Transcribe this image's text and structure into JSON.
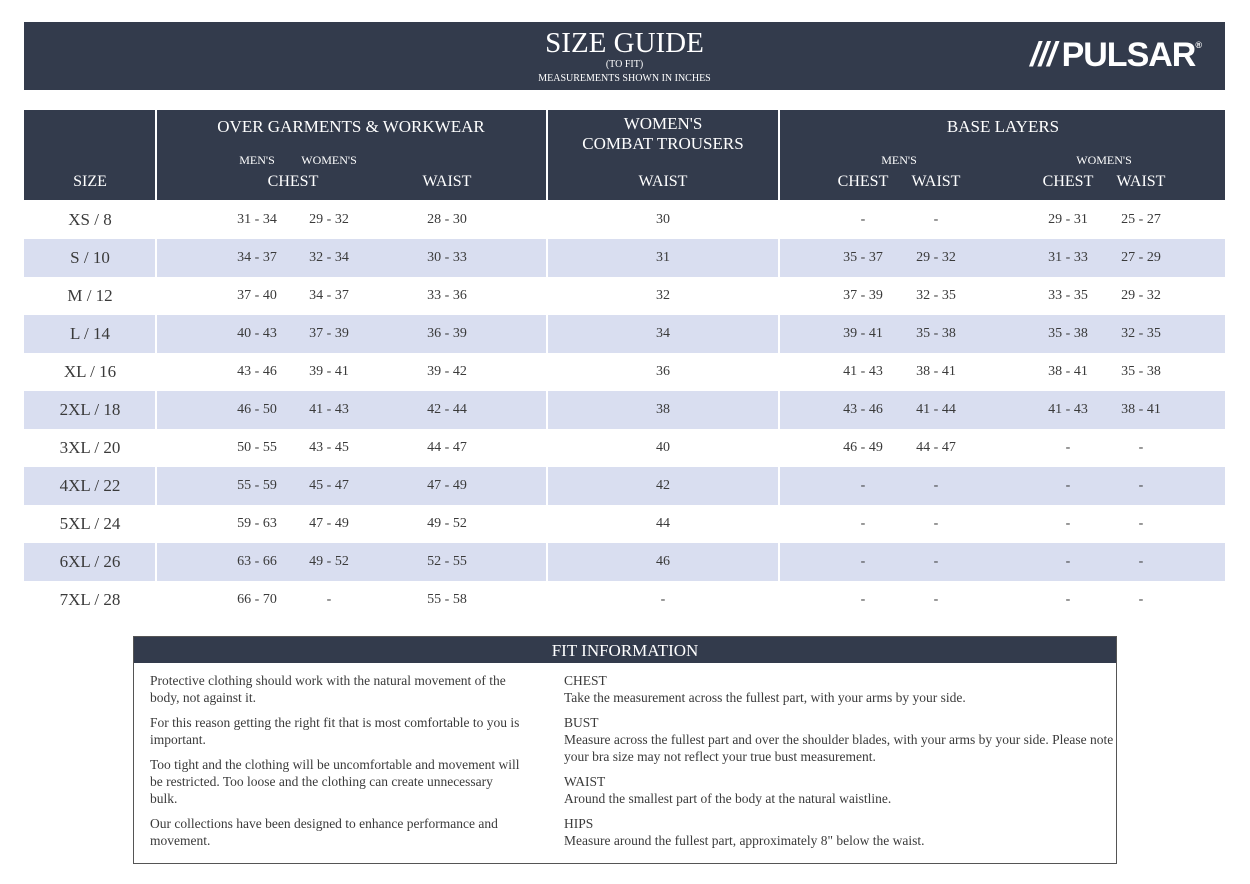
{
  "header": {
    "title": "SIZE GUIDE",
    "subtitle": "(TO FIT)",
    "note": "MEASUREMENTS SHOWN IN INCHES",
    "logo": "PULSAR"
  },
  "table_header": {
    "size": "SIZE",
    "over_garments": {
      "title": "OVER GARMENTS & WORKWEAR",
      "mens": "MEN'S",
      "womens": "WOMEN'S",
      "chest": "CHEST",
      "waist": "WAIST"
    },
    "combat": {
      "title1": "WOMEN'S",
      "title2": "COMBAT TROUSERS",
      "waist": "WAIST"
    },
    "base_layers": {
      "title": "BASE LAYERS",
      "mens": "MEN'S",
      "womens": "WOMEN'S",
      "chest": "CHEST",
      "waist": "WAIST"
    }
  },
  "rows": [
    [
      "XS / 8",
      "31 - 34",
      "29 - 32",
      "28 - 30",
      "30",
      "-",
      "-",
      "29 - 31",
      "25 - 27"
    ],
    [
      "S / 10",
      "34 - 37",
      "32 - 34",
      "30 - 33",
      "31",
      "35 - 37",
      "29 - 32",
      "31 - 33",
      "27 - 29"
    ],
    [
      "M / 12",
      "37 - 40",
      "34 - 37",
      "33 - 36",
      "32",
      "37 - 39",
      "32 - 35",
      "33 - 35",
      "29 - 32"
    ],
    [
      "L / 14",
      "40 - 43",
      "37 - 39",
      "36 - 39",
      "34",
      "39 - 41",
      "35 - 38",
      "35 - 38",
      "32 - 35"
    ],
    [
      "XL / 16",
      "43 - 46",
      "39 - 41",
      "39 - 42",
      "36",
      "41 - 43",
      "38 - 41",
      "38 - 41",
      "35 - 38"
    ],
    [
      "2XL / 18",
      "46 - 50",
      "41 - 43",
      "42 - 44",
      "38",
      "43 - 46",
      "41 - 44",
      "41 - 43",
      "38 - 41"
    ],
    [
      "3XL / 20",
      "50 - 55",
      "43 - 45",
      "44 - 47",
      "40",
      "46 - 49",
      "44 - 47",
      "-",
      "-"
    ],
    [
      "4XL / 22",
      "55 - 59",
      "45 - 47",
      "47 - 49",
      "42",
      "-",
      "-",
      "-",
      "-"
    ],
    [
      "5XL / 24",
      "59 - 63",
      "47 - 49",
      "49 - 52",
      "44",
      "-",
      "-",
      "-",
      "-"
    ],
    [
      "6XL / 26",
      "63 - 66",
      "49 - 52",
      "52 - 55",
      "46",
      "-",
      "-",
      "-",
      "-"
    ],
    [
      "7XL / 28",
      "66 - 70",
      "-",
      "55 - 58",
      "-",
      "-",
      "-",
      "-",
      "-"
    ]
  ],
  "fit": {
    "title": "FIT INFORMATION",
    "paragraphs": [
      "Protective clothing should work with the natural movement of the body, not against it.",
      "For this reason getting the right fit that is most comfortable to you is important.",
      "Too tight and the clothing will be uncomfortable and movement will be restricted. Too loose and the clothing can create unnecessary bulk.",
      "Our collections have been designed to enhance performance and movement."
    ],
    "measures": [
      {
        "label": "CHEST",
        "text": "Take the measurement across the fullest part, with your arms by your side."
      },
      {
        "label": "BUST",
        "text": "Measure across the fullest part and over the shoulder blades, with your arms by your side. Please note your bra size may not reflect your true bust measurement."
      },
      {
        "label": "WAIST",
        "text": "Around the smallest part of the body at the natural waistline."
      },
      {
        "label": "HIPS",
        "text": "Measure around the fullest part, approximately 8\" below the waist."
      }
    ]
  },
  "colors": {
    "dark": "#333b4c",
    "stripe": "#d9def0"
  }
}
